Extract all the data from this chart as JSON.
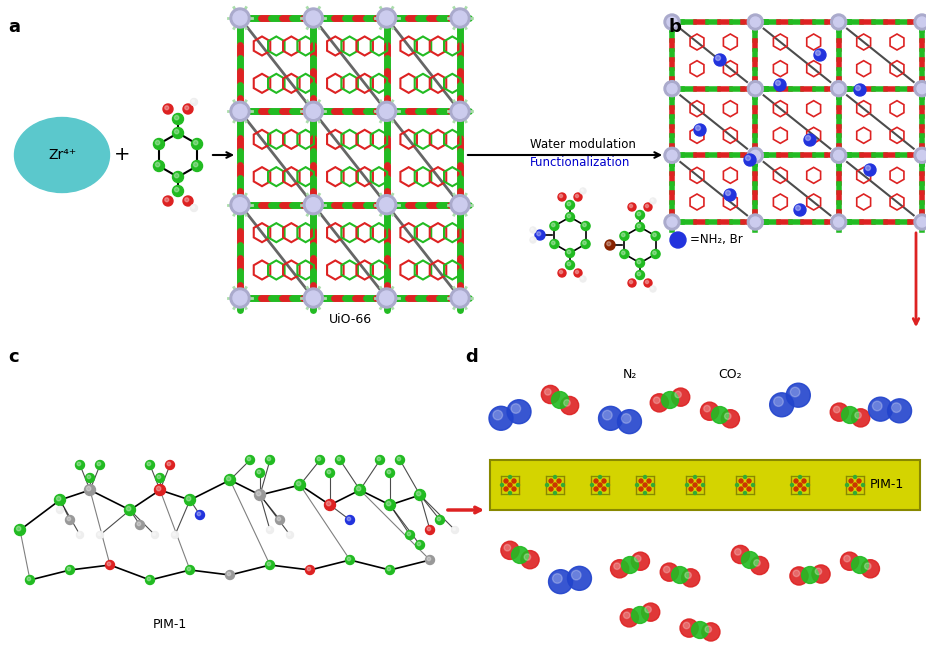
{
  "bg_color": "#ffffff",
  "panel_labels": [
    "a",
    "b",
    "c",
    "d"
  ],
  "panel_label_fontsize": 13,
  "panel_label_weight": "bold",
  "zr_color": "#5bc8cc",
  "zr_text": "Zr⁴⁺",
  "plus_text": "+",
  "arrow_color": "#000000",
  "red_arrow_color": "#dd2222",
  "water_mod_text": "Water modulation",
  "func_text": "Functionalization",
  "func_color": "#0000cc",
  "uio66_text": "UiO-66",
  "pim1_text": "PIM-1",
  "n2_text": "N₂",
  "co2_text": "CO₂",
  "nh2br_text": "=NH₂, Br",
  "membrane_color": "#d4d400",
  "membrane_text_color": "#000000",
  "atom_green": "#22bb22",
  "atom_red": "#dd2222",
  "atom_white": "#eeeeee",
  "atom_gray": "#999999",
  "atom_blue": "#2233dd",
  "atom_darkgray": "#333333",
  "mol_blue_n2": "#2244cc",
  "mol_red_co2": "#dd2222",
  "mol_green_co2": "#22bb22"
}
